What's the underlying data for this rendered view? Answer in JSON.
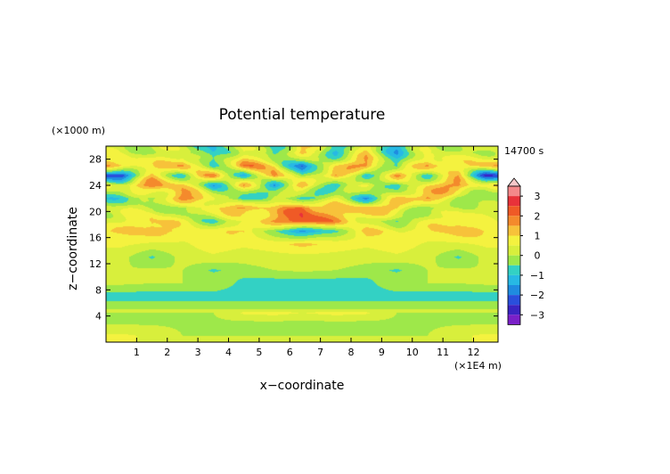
{
  "chart_data": {
    "type": "heatmap",
    "title": "Potential temperature",
    "xlabel": "x−coordinate",
    "ylabel": "z−coordinate",
    "x_unit": "(×1E4 m)",
    "y_unit": "(×1000 m)",
    "time_label": "14700 s",
    "xlim": [
      0,
      12.8
    ],
    "ylim": [
      0,
      30
    ],
    "x_ticks": [
      "1",
      "2",
      "3",
      "4",
      "5",
      "6",
      "7",
      "8",
      "9",
      "10",
      "11",
      "12"
    ],
    "y_ticks": [
      "4",
      "8",
      "12",
      "16",
      "20",
      "24",
      "28"
    ],
    "colorbar": {
      "labels": [
        "3",
        "2",
        "1",
        "0",
        "−1",
        "−2",
        "−3"
      ],
      "levels": [
        -3.5,
        -3,
        -2.5,
        -2,
        -1.5,
        -1,
        -0.5,
        0,
        0.5,
        1,
        1.5,
        2,
        2.5,
        3,
        3.5
      ],
      "colors": [
        "#7a20c8",
        "#3a24c2",
        "#2a4fdc",
        "#1f8be0",
        "#27b9e4",
        "#33d1c4",
        "#9ee84a",
        "#d8ef3c",
        "#f4f23f",
        "#f7c23a",
        "#f48a2c",
        "#ef5a26",
        "#e8323a",
        "#f4888a"
      ],
      "extend_max": true
    },
    "description_grid": {
      "note": "approximate field values (z rows top to bottom, x columns left to right)",
      "z_rows": [
        29,
        27,
        25.5,
        24,
        22,
        20.5,
        18.5,
        17,
        15,
        13,
        11,
        9,
        7,
        5,
        4.5,
        3,
        1
      ],
      "x_cols": [
        0.5,
        1.5,
        2.5,
        3.5,
        4.5,
        5.5,
        6.4,
        7.5,
        8.5,
        9.5,
        10.5,
        11.5,
        12.4
      ],
      "values": [
        [
          0.2,
          0.0,
          0.4,
          -1.2,
          0.8,
          -1.0,
          1.4,
          -1.0,
          0.8,
          -1.2,
          0.4,
          0.0,
          0.2
        ],
        [
          1.4,
          0.6,
          1.8,
          -0.8,
          1.8,
          1.0,
          -2.2,
          1.0,
          1.8,
          -0.8,
          1.8,
          0.6,
          1.4
        ],
        [
          -2.4,
          1.0,
          -0.6,
          1.8,
          -1.4,
          2.0,
          -0.8,
          2.0,
          -1.4,
          1.8,
          -0.6,
          1.0,
          -2.4
        ],
        [
          0.6,
          1.8,
          1.0,
          -1.2,
          1.2,
          -1.4,
          1.6,
          -1.4,
          1.2,
          -1.2,
          1.0,
          1.8,
          0.6
        ],
        [
          -0.6,
          -0.4,
          2.0,
          0.8,
          -1.4,
          0.6,
          -1.2,
          0.6,
          -1.4,
          0.8,
          2.0,
          -0.4,
          -0.6
        ],
        [
          0.2,
          0.4,
          -0.8,
          1.2,
          1.6,
          0.8,
          2.4,
          0.8,
          1.6,
          1.2,
          -0.8,
          0.4,
          0.2
        ],
        [
          0.4,
          1.2,
          0.6,
          -0.6,
          0.4,
          1.6,
          2.6,
          1.6,
          0.4,
          -0.6,
          0.6,
          1.2,
          0.4
        ],
        [
          1.0,
          1.4,
          0.8,
          0.6,
          1.2,
          -0.6,
          -1.6,
          -0.6,
          1.2,
          0.6,
          0.8,
          1.4,
          1.0
        ],
        [
          0.6,
          0.4,
          0.4,
          0.8,
          0.6,
          0.8,
          1.2,
          0.8,
          0.6,
          0.8,
          0.4,
          0.4,
          0.6
        ],
        [
          0.2,
          -0.6,
          0.2,
          0.4,
          0.2,
          0.3,
          0.3,
          0.3,
          0.2,
          0.4,
          0.2,
          -0.6,
          0.2
        ],
        [
          0.0,
          0.1,
          0.0,
          -0.6,
          -0.2,
          0.0,
          0.1,
          0.0,
          -0.2,
          -0.6,
          0.0,
          0.1,
          0.0
        ],
        [
          0.1,
          0.0,
          0.0,
          0.0,
          -0.7,
          -0.8,
          -0.8,
          -0.8,
          -0.7,
          0.0,
          0.0,
          0.0,
          0.1
        ],
        [
          -0.8,
          -0.8,
          -0.8,
          -0.8,
          -0.8,
          -0.8,
          -0.8,
          -0.8,
          -0.8,
          -0.8,
          -0.8,
          -0.8,
          -0.8
        ],
        [
          0.0,
          0.0,
          0.0,
          0.0,
          0.0,
          0.0,
          0.0,
          0.0,
          0.0,
          0.0,
          0.0,
          0.0,
          0.0
        ],
        [
          0.0,
          0.0,
          0.0,
          0.0,
          0.6,
          0.7,
          0.5,
          0.7,
          0.6,
          0.0,
          0.0,
          0.0,
          0.0
        ],
        [
          -0.1,
          -0.1,
          -0.1,
          -0.1,
          -0.1,
          -0.1,
          -0.1,
          -0.1,
          -0.1,
          -0.1,
          -0.1,
          -0.1,
          -0.1
        ],
        [
          0.6,
          0.4,
          0.0,
          0.0,
          0.0,
          0.0,
          0.0,
          0.0,
          0.0,
          0.0,
          0.0,
          0.4,
          0.6
        ]
      ]
    }
  }
}
